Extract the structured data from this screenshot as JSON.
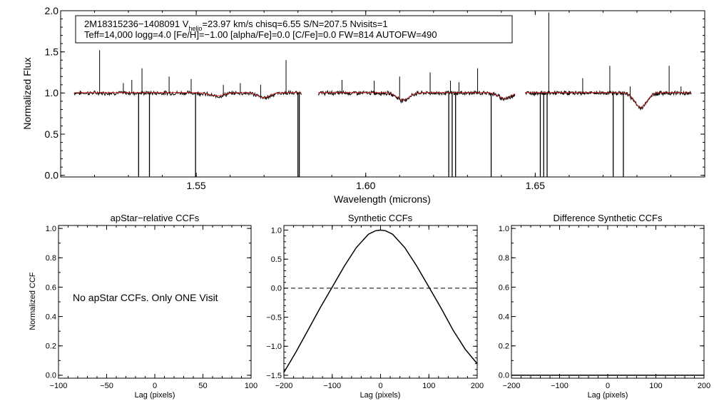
{
  "chart_data": [
    {
      "type": "line",
      "id": "spectrum",
      "xlabel": "Wavelength (microns)",
      "ylabel": "Normalized Flux",
      "xlim": [
        1.51,
        1.7
      ],
      "ylim": [
        -0.02,
        2.0
      ],
      "xticks": [
        1.55,
        1.6,
        1.65
      ],
      "xtick_labels": [
        "1.55",
        "1.60",
        "1.65"
      ],
      "yticks": [
        0.0,
        0.5,
        1.0,
        1.5,
        2.0
      ],
      "ytick_labels": [
        "0.0",
        "0.5",
        "1.0",
        "1.5",
        "2.0"
      ],
      "annotation": {
        "line1_before": "2M18315236−1408091  V",
        "line1_sub": "helio",
        "line1_after": "=23.97 km/s  chisq=6.55  S/N=207.5  Nvisits=1",
        "line2": "Teff=14,000 logg=4.0 [Fe/H]=−1.00 [alpha/Fe]=0.0 [C/Fe]=0.0 FW=814 AUTOFW=490"
      },
      "chips": [
        [
          1.514,
          1.581
        ],
        [
          1.586,
          1.644
        ],
        [
          1.647,
          1.696
        ]
      ],
      "continuum": 1.0,
      "absorption_lines": [
        {
          "center": 1.556,
          "depth": 0.04,
          "width": 0.003
        },
        {
          "center": 1.57,
          "depth": 0.06,
          "width": 0.0025
        },
        {
          "center": 1.611,
          "depth": 0.09,
          "width": 0.0025
        },
        {
          "center": 1.641,
          "depth": 0.07,
          "width": 0.0025
        },
        {
          "center": 1.6811,
          "depth": 0.18,
          "width": 0.0025
        }
      ],
      "emission_spikes": [
        {
          "x": 1.5215,
          "y": 1.52
        },
        {
          "x": 1.5285,
          "y": 1.12
        },
        {
          "x": 1.531,
          "y": 1.16
        },
        {
          "x": 1.534,
          "y": 1.3
        },
        {
          "x": 1.542,
          "y": 1.2
        },
        {
          "x": 1.5485,
          "y": 1.17
        },
        {
          "x": 1.558,
          "y": 1.1
        },
        {
          "x": 1.563,
          "y": 1.12
        },
        {
          "x": 1.569,
          "y": 1.1
        },
        {
          "x": 1.5765,
          "y": 1.4
        },
        {
          "x": 1.593,
          "y": 1.16
        },
        {
          "x": 1.6025,
          "y": 1.15
        },
        {
          "x": 1.61,
          "y": 1.2
        },
        {
          "x": 1.619,
          "y": 1.25
        },
        {
          "x": 1.625,
          "y": 1.15
        },
        {
          "x": 1.6275,
          "y": 1.13
        },
        {
          "x": 1.633,
          "y": 1.3
        },
        {
          "x": 1.654,
          "y": 1.98
        },
        {
          "x": 1.664,
          "y": 1.18
        },
        {
          "x": 1.672,
          "y": 1.33
        },
        {
          "x": 1.678,
          "y": 1.08
        },
        {
          "x": 1.6895,
          "y": 1.33
        },
        {
          "x": 1.693,
          "y": 1.08
        }
      ],
      "bad_pixel_drops": [
        1.533,
        1.5362,
        1.5498,
        1.58,
        1.5804,
        1.6245,
        1.6255,
        1.6265,
        1.637,
        1.6515,
        1.6525,
        1.6535,
        1.673,
        1.676
      ],
      "series": [
        {
          "name": "observed spectrum",
          "color": "#000000"
        },
        {
          "name": "best-fit synthetic",
          "color": "#d62020"
        }
      ]
    },
    {
      "type": "line",
      "id": "apstar-ccf",
      "title": "apStar−relative CCFs",
      "xlabel": "Lag (pixels)",
      "ylabel": "Normalized CCF",
      "xlim": [
        -100,
        100
      ],
      "ylim": [
        -0.02,
        1.02
      ],
      "xticks": [
        -100,
        -50,
        0,
        50,
        100
      ],
      "xtick_labels": [
        "−100",
        "−50",
        "0",
        "50",
        "100"
      ],
      "yticks": [
        0.0,
        0.2,
        0.4,
        0.6,
        0.8,
        1.0
      ],
      "ytick_labels": [
        "0.0",
        "0.2",
        "0.4",
        "0.6",
        "0.8",
        "1.0"
      ],
      "message": "No apStar CCFs.  Only ONE Visit",
      "series": []
    },
    {
      "type": "line",
      "id": "synthetic-ccf",
      "title": "Synthetic CCFs",
      "xlabel": "Lag (pixels)",
      "ylabel": "",
      "xlim": [
        -200,
        200
      ],
      "ylim": [
        -1.55,
        1.08
      ],
      "xticks": [
        -200,
        -100,
        0,
        100,
        200
      ],
      "xtick_labels": [
        "−200",
        "−100",
        "0",
        "100",
        "200"
      ],
      "yticks": [
        -1.5,
        -1.0,
        -0.5,
        0.0,
        0.5,
        1.0
      ],
      "ytick_labels": [
        "−1.5",
        "−1.0",
        "−0.5",
        "0.0",
        "0.5",
        "1.0"
      ],
      "series": [
        {
          "name": "synthetic CCF",
          "style": "solid",
          "x": [
            -200,
            -175,
            -150,
            -125,
            -100,
            -75,
            -50,
            -25,
            -10,
            0,
            10,
            25,
            50,
            75,
            100,
            125,
            150,
            175,
            200
          ],
          "y": [
            -1.45,
            -1.1,
            -0.72,
            -0.34,
            0.02,
            0.38,
            0.7,
            0.93,
            0.99,
            1.0,
            0.99,
            0.93,
            0.7,
            0.38,
            0.02,
            -0.34,
            -0.72,
            -1.05,
            -1.3
          ]
        },
        {
          "name": "zero reference",
          "style": "dashed",
          "x": [
            -200,
            200
          ],
          "y": [
            0.0,
            0.0
          ]
        }
      ]
    },
    {
      "type": "line",
      "id": "difference-ccf",
      "title": "Difference Synthetic CCFs",
      "xlabel": "Lag (pixels)",
      "ylabel": "",
      "xlim": [
        -200,
        200
      ],
      "ylim": [
        -0.02,
        1.02
      ],
      "xticks": [
        -200,
        -100,
        0,
        100,
        200
      ],
      "xtick_labels": [
        "−200",
        "−100",
        "0",
        "100",
        "200"
      ],
      "yticks": [
        0.0,
        0.2,
        0.4,
        0.6,
        0.8,
        1.0
      ],
      "ytick_labels": [
        "0.0",
        "0.2",
        "0.4",
        "0.6",
        "0.8",
        "1.0"
      ],
      "series": [
        {
          "name": "difference CCF",
          "style": "solid",
          "x": [
            -200,
            200
          ],
          "y": [
            0.0,
            0.0
          ]
        }
      ]
    }
  ]
}
